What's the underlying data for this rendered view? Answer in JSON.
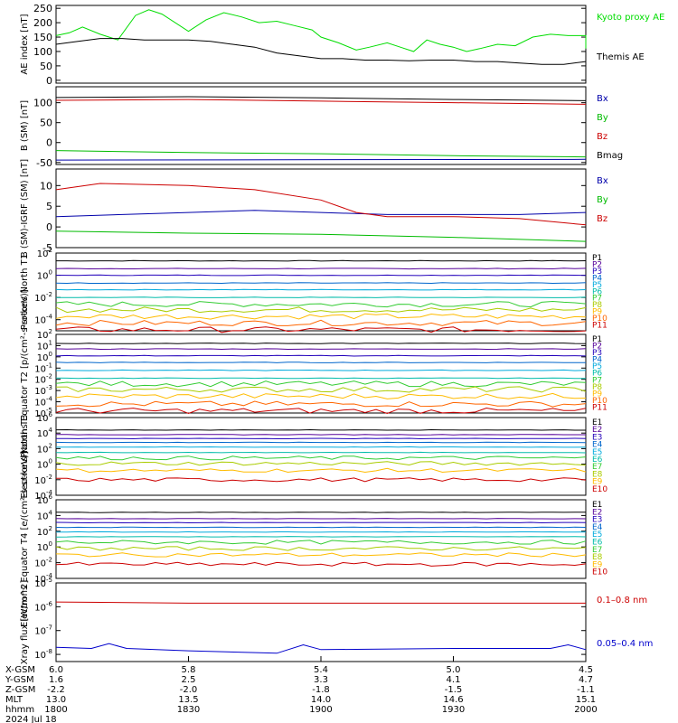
{
  "chart_data": [
    {
      "type": "line",
      "ylabel": "AE index [nT]",
      "ylim": [
        -10,
        260
      ],
      "yticks": [
        "250",
        "200",
        "150",
        "100",
        "50",
        "0"
      ],
      "series": [
        {
          "name": "Kyoto proxy AE",
          "color": "#00dd00",
          "x": [
            1800,
            1803,
            1806,
            1810,
            1814,
            1818,
            1821,
            1824,
            1830,
            1834,
            1838,
            1842,
            1846,
            1850,
            1854,
            1858,
            1900,
            1904,
            1908,
            1911,
            1915,
            1918,
            1921,
            1924,
            1927,
            1930,
            1933,
            1936,
            1940,
            1944,
            1948,
            1952,
            1956,
            1960,
            2000
          ],
          "y": [
            155,
            165,
            185,
            160,
            140,
            225,
            245,
            230,
            170,
            210,
            235,
            220,
            200,
            205,
            190,
            175,
            150,
            130,
            105,
            115,
            130,
            115,
            100,
            140,
            125,
            115,
            100,
            110,
            125,
            120,
            150,
            160,
            155,
            155,
            110
          ]
        },
        {
          "name": "Themis AE",
          "color": "#000000",
          "x": [
            1800,
            1805,
            1810,
            1815,
            1820,
            1825,
            1830,
            1835,
            1840,
            1845,
            1850,
            1855,
            1900,
            1905,
            1910,
            1915,
            1920,
            1925,
            1930,
            1935,
            1940,
            1945,
            1950,
            1955,
            2000
          ],
          "y": [
            125,
            135,
            145,
            145,
            140,
            140,
            140,
            135,
            125,
            115,
            95,
            85,
            75,
            75,
            70,
            70,
            68,
            70,
            70,
            65,
            65,
            60,
            55,
            55,
            65
          ]
        }
      ]
    },
    {
      "type": "line",
      "ylabel": "B (SM) [nT]",
      "ylim": [
        -55,
        140
      ],
      "yticks": [
        "100",
        "50",
        "0",
        "-50"
      ],
      "series": [
        {
          "name": "Bx",
          "color": "#0000aa",
          "x": [
            1800,
            2000
          ],
          "y": [
            -44,
            -42
          ]
        },
        {
          "name": "By",
          "color": "#00bb00",
          "x": [
            1800,
            1830,
            1900,
            1930,
            2000
          ],
          "y": [
            -20,
            -25,
            -28,
            -33,
            -36
          ]
        },
        {
          "name": "Bz",
          "color": "#cc0000",
          "x": [
            1800,
            1830,
            1900,
            1930,
            2000
          ],
          "y": [
            106,
            108,
            104,
            100,
            96
          ]
        },
        {
          "name": "Bmag",
          "color": "#000000",
          "x": [
            1800,
            1830,
            1900,
            1930,
            2000
          ],
          "y": [
            113,
            115,
            112,
            108,
            105
          ]
        }
      ]
    },
    {
      "type": "line",
      "ylabel": "B (SM)-IGRF (SM) [nT]",
      "ylim": [
        -5,
        14
      ],
      "yticks": [
        "10",
        "5",
        "0",
        "-5"
      ],
      "series": [
        {
          "name": "Bx",
          "color": "#0000aa",
          "x": [
            1800,
            1815,
            1830,
            1845,
            1900,
            1915,
            1930,
            1945,
            2000
          ],
          "y": [
            2.5,
            3,
            3.5,
            4,
            3.5,
            3,
            3,
            3,
            3.5
          ]
        },
        {
          "name": "By",
          "color": "#00bb00",
          "x": [
            1800,
            1830,
            1900,
            1930,
            2000
          ],
          "y": [
            -1,
            -1.5,
            -1.8,
            -2.5,
            -3.5
          ]
        },
        {
          "name": "Bz",
          "color": "#cc0000",
          "x": [
            1800,
            1810,
            1830,
            1845,
            1900,
            1908,
            1915,
            1930,
            1945,
            2000
          ],
          "y": [
            9,
            10.5,
            10,
            9,
            6.5,
            3.5,
            2.5,
            2.5,
            2,
            0.5
          ]
        }
      ]
    },
    {
      "type": "line",
      "log": true,
      "ylabel": "Protons North T1",
      "ylim_exp": [
        -5,
        2
      ],
      "tick_exps": [
        2,
        0,
        -2,
        -4
      ],
      "legend": [
        "P1",
        "P2",
        "P3",
        "P4",
        "P5",
        "P6",
        "P7",
        "P8",
        "P9",
        "P10",
        "P11"
      ],
      "colors": [
        "#000000",
        "#550099",
        "#2200bb",
        "#0066cc",
        "#00aadd",
        "#00bbaa",
        "#33cc33",
        "#aacc00",
        "#ffbb00",
        "#ff6600",
        "#cc0000"
      ],
      "levels": [
        1.3,
        0.6,
        0.0,
        -0.7,
        -1.3,
        -2.0,
        -2.6,
        -3.1,
        -3.7,
        -4.3,
        -4.9
      ]
    },
    {
      "type": "line",
      "log": true,
      "ylabel": "Protons Equator T2 [p/(cm²-s-sr-keV)]",
      "ylim_exp": [
        -5,
        2
      ],
      "tick_exps": [
        2,
        1,
        0,
        -1,
        -2,
        -3,
        -4,
        -5
      ],
      "legend": [
        "P1",
        "P2",
        "P3",
        "P4",
        "P5",
        "P6",
        "P7",
        "P8",
        "P9",
        "P10",
        "P11"
      ],
      "colors": [
        "#000000",
        "#550099",
        "#2200bb",
        "#0066cc",
        "#00aadd",
        "#00bbaa",
        "#33cc33",
        "#aacc00",
        "#ffbb00",
        "#ff6600",
        "#cc0000"
      ],
      "levels": [
        1.2,
        0.7,
        0.1,
        -0.5,
        -1.2,
        -1.9,
        -2.4,
        -2.9,
        -3.5,
        -4.2,
        -4.8
      ]
    },
    {
      "type": "line",
      "log": true,
      "ylabel": "Electrons North T3",
      "ylim_exp": [
        -4,
        6
      ],
      "tick_exps": [
        6,
        4,
        2,
        0,
        -2,
        -4
      ],
      "legend": [
        "E1",
        "E2",
        "E3",
        "E4",
        "E5",
        "E6",
        "E7",
        "E8",
        "E9",
        "E10"
      ],
      "colors": [
        "#000000",
        "#550099",
        "#2200bb",
        "#0066cc",
        "#00aadd",
        "#00bbaa",
        "#33cc33",
        "#aacc00",
        "#ffbb00",
        "#cc0000"
      ],
      "levels": [
        4.4,
        3.8,
        3.3,
        2.8,
        2.2,
        1.5,
        0.8,
        0.1,
        -0.8,
        -2.0
      ]
    },
    {
      "type": "line",
      "log": true,
      "ylabel": "Electrons Equator T4 [e/(cm²-s-sr-keV)]",
      "ylim_exp": [
        -4,
        6
      ],
      "tick_exps": [
        6,
        4,
        2,
        0,
        -2,
        -4
      ],
      "legend": [
        "E1",
        "E2",
        "E3",
        "E4",
        "E5",
        "E6",
        "E7",
        "E8",
        "E9",
        "E10"
      ],
      "colors": [
        "#000000",
        "#550099",
        "#2200bb",
        "#0066cc",
        "#00aadd",
        "#00bbaa",
        "#33cc33",
        "#aacc00",
        "#ffbb00",
        "#cc0000"
      ],
      "levels": [
        4.4,
        3.6,
        3.1,
        2.5,
        1.9,
        1.3,
        0.6,
        -0.2,
        -1.0,
        -2.2
      ]
    },
    {
      "type": "line",
      "log": true,
      "ylabel": "Xray flux [W/m^2]",
      "ylim_exp": [
        -8.3,
        -5
      ],
      "tick_exps": [
        -5,
        -6,
        -7,
        -8
      ],
      "series": [
        {
          "name": "0.1–0.8 nm",
          "color": "#cc0000",
          "x": [
            1800,
            1830,
            1900,
            1930,
            2000
          ],
          "y_exp": [
            -5.8,
            -5.85,
            -5.85,
            -5.85,
            -5.85
          ]
        },
        {
          "name": "0.05–0.4 nm",
          "color": "#0000cc",
          "x": [
            1800,
            1808,
            1812,
            1816,
            1830,
            1850,
            1856,
            1900,
            1930,
            1952,
            1956,
            2000
          ],
          "y_exp": [
            -7.7,
            -7.75,
            -7.55,
            -7.75,
            -7.85,
            -7.95,
            -7.6,
            -7.8,
            -7.75,
            -7.75,
            -7.6,
            -7.8
          ]
        }
      ]
    }
  ],
  "xaxis": {
    "xlim": [
      1800,
      2000
    ],
    "rows": [
      {
        "label": "X-GSM",
        "values": [
          "6.0",
          "5.8",
          "5.4",
          "5.0",
          "4.5"
        ]
      },
      {
        "label": "Y-GSM",
        "values": [
          "1.6",
          "2.5",
          "3.3",
          "4.1",
          "4.7"
        ]
      },
      {
        "label": "Z-GSM",
        "values": [
          "-2.2",
          "-2.0",
          "-1.8",
          "-1.5",
          "-1.1"
        ]
      },
      {
        "label": "MLT",
        "values": [
          "13.0",
          "13.5",
          "14.0",
          "14.6",
          "15.1"
        ]
      },
      {
        "label": "hhmm",
        "values": [
          "1800",
          "1830",
          "1900",
          "1930",
          "2000"
        ]
      }
    ],
    "date": "2024 Jul 18"
  }
}
